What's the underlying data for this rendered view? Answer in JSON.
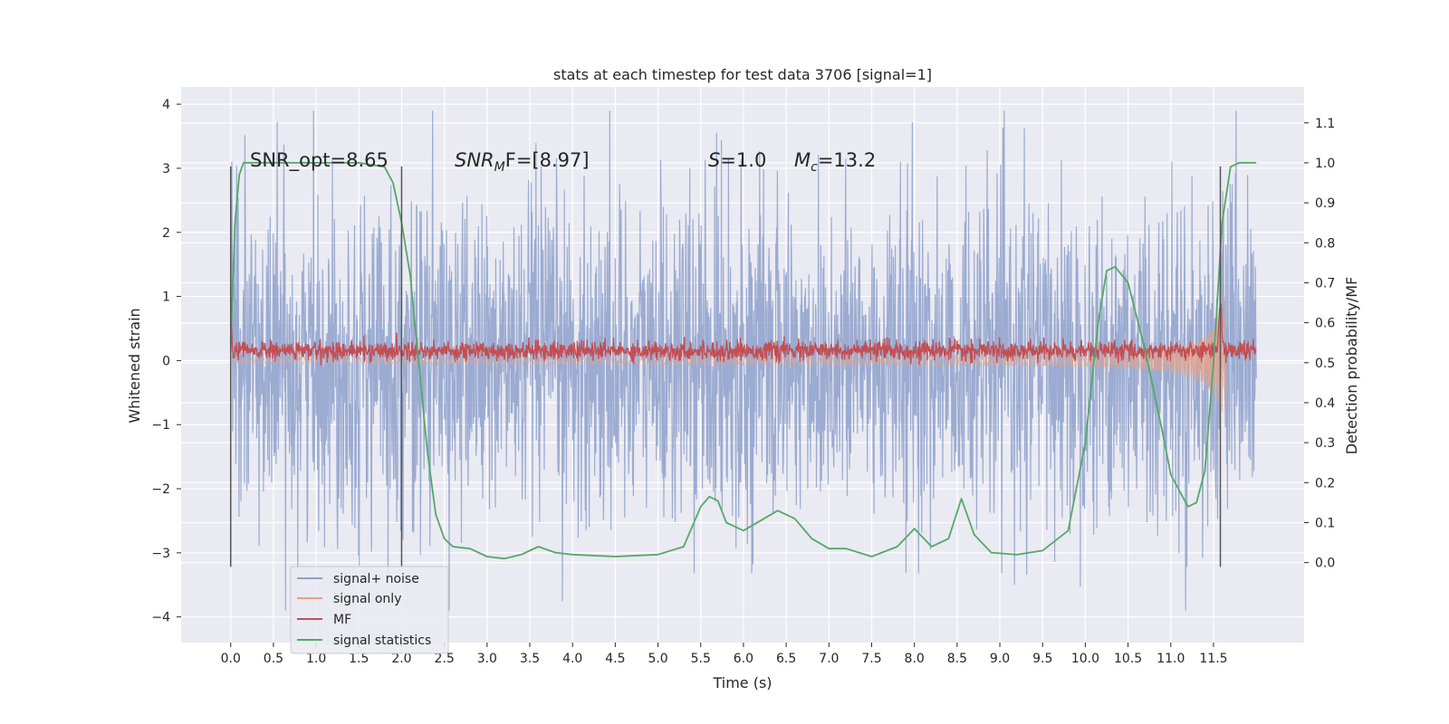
{
  "chart_data": {
    "type": "line",
    "title": "stats at each timestep for test data 3706 [signal=1]",
    "xlabel": "Time (s)",
    "ylabel_left": "Whitened strain",
    "ylabel_right": "Detection probability/MF",
    "xlim": [
      -0.58,
      12.56
    ],
    "ylim_left": [
      -4.4,
      4.27
    ],
    "ylim_right": [
      -0.2,
      1.19
    ],
    "x_ticks": [
      "0.0",
      "0.5",
      "1.0",
      "1.5",
      "2.0",
      "2.5",
      "3.0",
      "3.5",
      "4.0",
      "4.5",
      "5.0",
      "5.5",
      "6.0",
      "6.5",
      "7.0",
      "7.5",
      "8.0",
      "8.5",
      "9.0",
      "9.5",
      "10.0",
      "10.5",
      "11.0",
      "11.5"
    ],
    "y_ticks_left": [
      "4",
      "3",
      "2",
      "1",
      "0",
      "−1",
      "−2",
      "−3",
      "−4"
    ],
    "y_ticks_right": [
      "1.1",
      "1.0",
      "0.9",
      "0.8",
      "0.7",
      "0.6",
      "0.5",
      "0.4",
      "0.3",
      "0.2",
      "0.1",
      "0.0"
    ],
    "grid": true,
    "legend_placement": "lower-left",
    "annotations": {
      "snr_opt": "SNR_opt=8.65",
      "snr_mf_name": "SNR",
      "snr_mf_sub": "M",
      "snr_mf_rest": "F=[8.97]",
      "s_name": "S",
      "s_rest": "=1.0",
      "mc_name": "M",
      "mc_sub": "c",
      "mc_rest": "=13.2"
    },
    "markers_x": [
      0.0,
      2.0,
      11.58
    ],
    "series": [
      {
        "name": "signal+ noise",
        "axis": "left",
        "color": "#8da0cb",
        "description": "noisy whitened strain, envelope roughly ±2.5 with peaks to ±3.9",
        "x_range": [
          0.0,
          12.0
        ],
        "envelope": 2.2
      },
      {
        "name": "signal only",
        "axis": "left",
        "color": "#e9a185",
        "description": "chirp growing in amplitude toward merger near 11.6 s",
        "x_range": [
          0.0,
          11.65
        ],
        "envelope_end": 1.4
      },
      {
        "name": "MF",
        "axis": "right",
        "color": "#c44e52",
        "description": "matched filter output fluctuating around 0.53, spike to 0.65 near 11.6 s",
        "x_range": [
          0.0,
          12.0
        ],
        "mean": 0.53
      },
      {
        "name": "signal statistics",
        "axis": "right",
        "color": "#55a868",
        "x": [
          0.0,
          0.05,
          0.1,
          0.15,
          0.25,
          0.5,
          1.0,
          1.5,
          1.8,
          1.9,
          2.0,
          2.1,
          2.2,
          2.3,
          2.4,
          2.5,
          2.6,
          2.8,
          3.0,
          3.2,
          3.4,
          3.6,
          3.8,
          4.0,
          4.5,
          5.0,
          5.3,
          5.5,
          5.6,
          5.7,
          5.8,
          6.0,
          6.2,
          6.4,
          6.6,
          6.8,
          7.0,
          7.2,
          7.5,
          7.8,
          8.0,
          8.2,
          8.4,
          8.55,
          8.7,
          8.9,
          9.2,
          9.5,
          9.8,
          10.0,
          10.15,
          10.25,
          10.35,
          10.5,
          10.7,
          10.9,
          11.0,
          11.2,
          11.3,
          11.4,
          11.5,
          11.6,
          11.7,
          11.8,
          12.0
        ],
        "y": [
          0.55,
          0.85,
          0.97,
          1.0,
          1.0,
          1.0,
          1.0,
          1.0,
          0.99,
          0.95,
          0.85,
          0.72,
          0.5,
          0.28,
          0.12,
          0.06,
          0.04,
          0.035,
          0.015,
          0.01,
          0.02,
          0.04,
          0.025,
          0.02,
          0.015,
          0.02,
          0.04,
          0.14,
          0.165,
          0.155,
          0.1,
          0.08,
          0.105,
          0.13,
          0.11,
          0.06,
          0.035,
          0.035,
          0.015,
          0.04,
          0.085,
          0.04,
          0.06,
          0.16,
          0.07,
          0.025,
          0.02,
          0.03,
          0.08,
          0.3,
          0.6,
          0.73,
          0.74,
          0.7,
          0.53,
          0.33,
          0.22,
          0.14,
          0.15,
          0.23,
          0.5,
          0.85,
          0.99,
          1.0,
          1.0
        ]
      }
    ]
  }
}
